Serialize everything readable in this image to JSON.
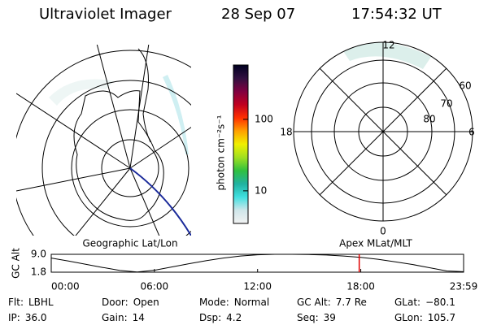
{
  "header": {
    "title": "Ultraviolet Imager",
    "date": "28 Sep 07",
    "time": "17:54:32 UT"
  },
  "geo_map": {
    "label": "Geographic Lat/Lon"
  },
  "colorbar": {
    "label": "photon cm⁻²s⁻¹",
    "log": true,
    "ylim": [
      3.5,
      575
    ],
    "yticks": [
      10,
      100
    ],
    "colors": [
      "#f2f2f2",
      "#cfe6ea",
      "#40e0e0",
      "#20b2a0",
      "#30c040",
      "#a0e020",
      "#f0f000",
      "#ffa000",
      "#ff3000",
      "#c00020",
      "#800040",
      "#301040",
      "#000020"
    ]
  },
  "polar_plot": {
    "label": "Apex MLat/MLT",
    "mlt_labels": [
      "12",
      "18",
      "6",
      "0"
    ],
    "lat_labels": [
      "60",
      "70",
      "80"
    ]
  },
  "orbit_plot": {
    "ylabel": "GC Alt",
    "ylim": [
      1.8,
      9.0
    ],
    "yticks": [
      1.8,
      {
        "value": 9.0,
        "label": "9.0"
      }
    ],
    "xlim": [
      0,
      23.98
    ],
    "xticks": [
      {
        "value": 0,
        "label": "00:00"
      },
      {
        "value": 6,
        "label": "06:00"
      },
      {
        "value": 12,
        "label": "12:00"
      },
      {
        "value": 18,
        "label": "18:00"
      },
      {
        "value": 23.98,
        "label": "23:59"
      }
    ],
    "x": [
      0,
      1,
      2,
      3,
      4,
      5,
      6,
      7,
      8,
      9,
      10,
      11,
      12,
      13,
      14,
      15,
      16,
      17,
      18,
      19,
      20,
      21,
      22,
      23,
      23.98
    ],
    "values": [
      7.5,
      6.3,
      5.0,
      3.7,
      2.5,
      1.9,
      2.6,
      3.9,
      5.2,
      6.4,
      7.5,
      8.3,
      8.8,
      9.0,
      9.0,
      8.9,
      8.7,
      8.3,
      7.8,
      7.0,
      6.0,
      4.9,
      3.6,
      2.3,
      2.0
    ],
    "marker": 17.91,
    "marker_color": "#e00000"
  },
  "status": [
    [
      {
        "label": "Flt:",
        "value": "LBHL"
      },
      {
        "label": "Door:",
        "value": "Open"
      },
      {
        "label": "Mode:",
        "value": "Normal"
      },
      {
        "label": "GC Alt:",
        "value": "7.7 Re"
      },
      {
        "label": "GLat:",
        "value": "−80.1"
      }
    ],
    [
      {
        "label": "IP:",
        "value": "36.0"
      },
      {
        "label": "Gain:",
        "value": "14"
      },
      {
        "label": "Dsp:",
        "value": "4.2"
      },
      {
        "label": "Seq:",
        "value": "39"
      },
      {
        "label": "GLon:",
        "value": "105.7"
      }
    ]
  ]
}
